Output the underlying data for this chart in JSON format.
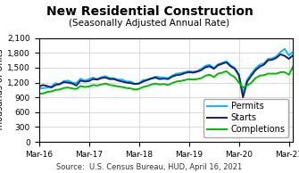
{
  "title": "New Residential Construction",
  "subtitle": "(Seasonally Adjusted Annual Rate)",
  "ylabel": "Thousands of Units",
  "source": "Source:  U.S. Census Bureau, HUD, April 16, 2021",
  "ylim": [
    0,
    2100
  ],
  "yticks": [
    0,
    300,
    600,
    900,
    1200,
    1500,
    1800,
    2100
  ],
  "xtick_labels": [
    "Mar-16",
    "Mar-17",
    "Mar-18",
    "Mar-19",
    "Mar-20",
    "Mar-21"
  ],
  "permits": [
    1086,
    1086,
    1100,
    1120,
    1190,
    1160,
    1230,
    1240,
    1200,
    1190,
    1280,
    1240,
    1270,
    1300,
    1270,
    1310,
    1330,
    1290,
    1290,
    1260,
    1260,
    1220,
    1220,
    1180,
    1180,
    1250,
    1260,
    1290,
    1320,
    1310,
    1300,
    1290,
    1340,
    1380,
    1390,
    1410,
    1430,
    1420,
    1430,
    1480,
    1540,
    1560,
    1490,
    1570,
    1600,
    1630,
    1550,
    1500,
    1370,
    980,
    1260,
    1380,
    1490,
    1560,
    1590,
    1680,
    1690,
    1730,
    1820,
    1880,
    1750,
    1820
  ],
  "starts": [
    1120,
    1150,
    1130,
    1100,
    1150,
    1170,
    1210,
    1200,
    1180,
    1140,
    1240,
    1220,
    1230,
    1270,
    1260,
    1290,
    1300,
    1270,
    1270,
    1240,
    1220,
    1200,
    1190,
    1170,
    1180,
    1220,
    1250,
    1280,
    1300,
    1270,
    1280,
    1270,
    1320,
    1350,
    1360,
    1390,
    1410,
    1400,
    1420,
    1450,
    1510,
    1530,
    1480,
    1550,
    1580,
    1610,
    1530,
    1480,
    1350,
    900,
    1220,
    1340,
    1450,
    1520,
    1560,
    1650,
    1660,
    1700,
    1770,
    1740,
    1680,
    1750
  ],
  "completions": [
    975,
    980,
    1010,
    1020,
    1050,
    1060,
    1090,
    1100,
    1080,
    1070,
    1130,
    1110,
    1120,
    1150,
    1140,
    1160,
    1180,
    1150,
    1140,
    1120,
    1110,
    1090,
    1080,
    1060,
    1070,
    1110,
    1130,
    1160,
    1180,
    1160,
    1170,
    1150,
    1190,
    1220,
    1230,
    1250,
    1270,
    1260,
    1270,
    1290,
    1340,
    1360,
    1310,
    1380,
    1400,
    1430,
    1360,
    1310,
    1200,
    1100,
    1140,
    1200,
    1290,
    1340,
    1350,
    1380,
    1380,
    1380,
    1410,
    1410,
    1360,
    1520
  ],
  "permits_color": "#00BFFF",
  "starts_color": "#1a1a6e",
  "completions_color": "#00BB00",
  "line_width": 1.4,
  "title_fontsize": 10,
  "subtitle_fontsize": 7.5,
  "axis_fontsize": 6.5,
  "ylabel_fontsize": 7,
  "source_fontsize": 6,
  "legend_fontsize": 7
}
